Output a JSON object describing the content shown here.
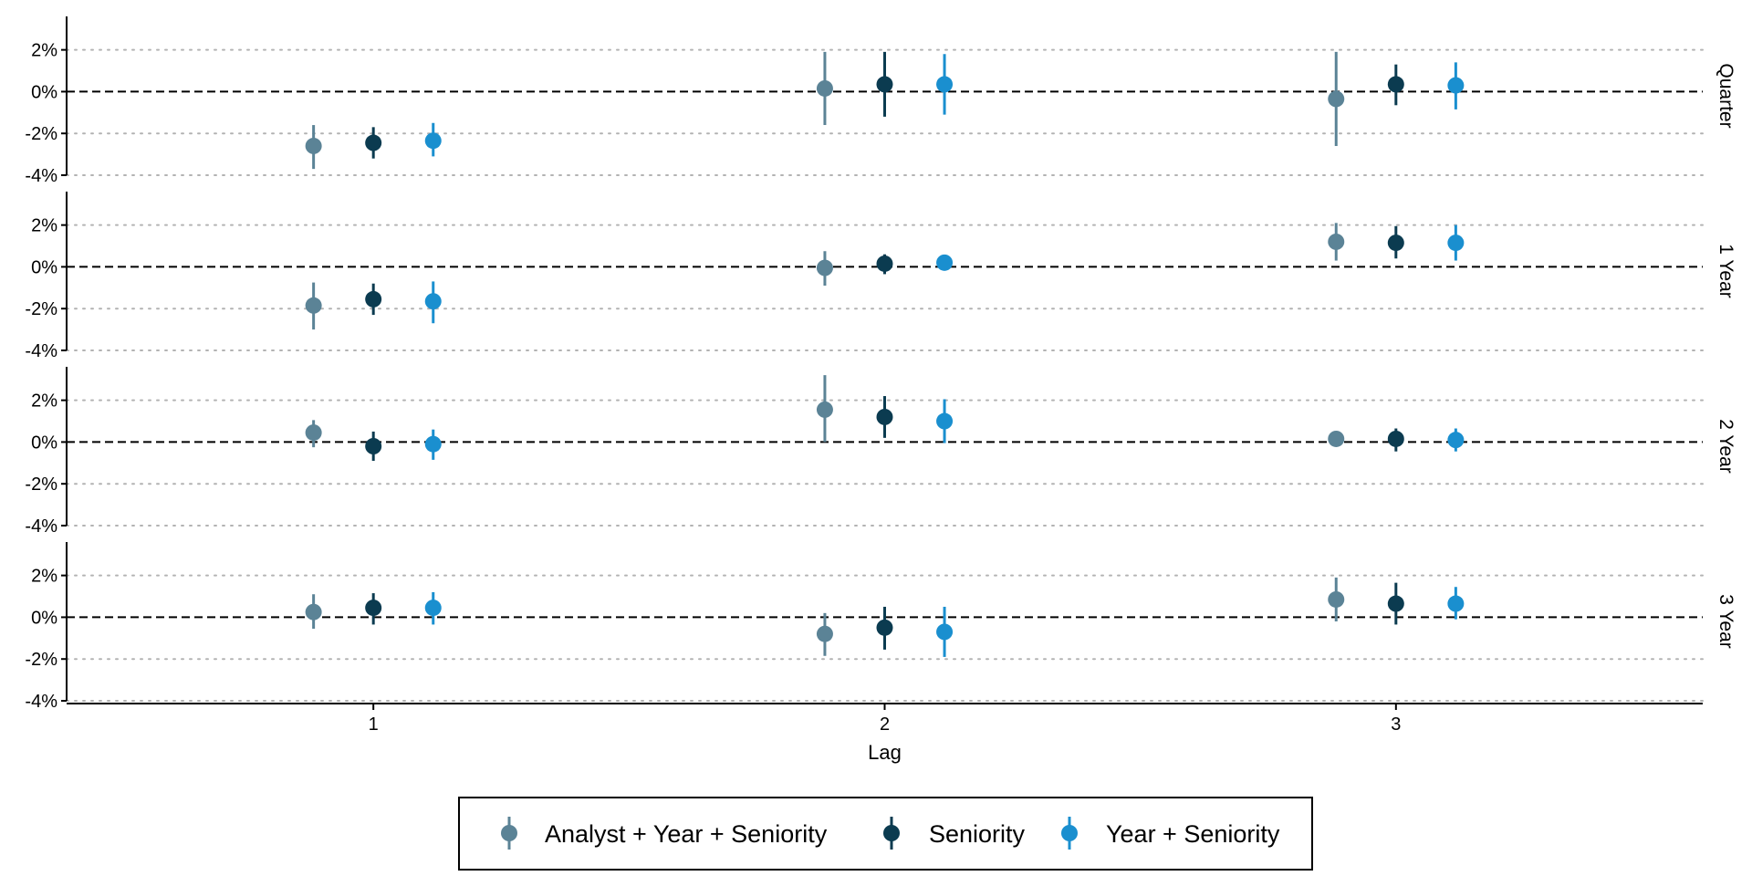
{
  "chart_data": {
    "type": "scatter",
    "subtype": "point-range (coefficient estimates with confidence intervals), faceted",
    "xlabel": "Lag",
    "x_ticks": [
      "1",
      "2",
      "3"
    ],
    "x_range": [
      0.4,
      3.6
    ],
    "y_ticks": [
      {
        "value": 2,
        "label": "2%"
      },
      {
        "value": 0,
        "label": "0%"
      },
      {
        "value": -2,
        "label": "-2%"
      },
      {
        "value": -4,
        "label": "-4%"
      }
    ],
    "y_range": [
      -4,
      3.6
    ],
    "reference_line": {
      "y": 0,
      "style": "dashed",
      "color": "#000000"
    },
    "grid": "horizontal dotted at 2% and -2%",
    "legend_position": "bottom",
    "series": [
      {
        "name": "Analyst + Year + Seniority",
        "color": "#5b8396",
        "offset": -0.117
      },
      {
        "name": "Seniority",
        "color": "#0b3b50",
        "offset": 0
      },
      {
        "name": "Year + Seniority",
        "color": "#1a8fcf",
        "offset": 0.117
      }
    ],
    "facets": [
      {
        "label": "Quarter",
        "points": [
          {
            "series": 0,
            "lag": 1,
            "est": -2.6,
            "lo": -3.7,
            "hi": -1.6
          },
          {
            "series": 1,
            "lag": 1,
            "est": -2.45,
            "lo": -3.2,
            "hi": -1.7
          },
          {
            "series": 2,
            "lag": 1,
            "est": -2.35,
            "lo": -3.1,
            "hi": -1.5
          },
          {
            "series": 0,
            "lag": 2,
            "est": 0.15,
            "lo": -1.6,
            "hi": 1.9
          },
          {
            "series": 1,
            "lag": 2,
            "est": 0.35,
            "lo": -1.2,
            "hi": 1.9
          },
          {
            "series": 2,
            "lag": 2,
            "est": 0.35,
            "lo": -1.1,
            "hi": 1.8
          },
          {
            "series": 0,
            "lag": 3,
            "est": -0.35,
            "lo": -2.6,
            "hi": 1.9
          },
          {
            "series": 1,
            "lag": 3,
            "est": 0.35,
            "lo": -0.65,
            "hi": 1.3
          },
          {
            "series": 2,
            "lag": 3,
            "est": 0.3,
            "lo": -0.85,
            "hi": 1.4
          }
        ]
      },
      {
        "label": "1 Year",
        "points": [
          {
            "series": 0,
            "lag": 1,
            "est": -1.85,
            "lo": -3.0,
            "hi": -0.75
          },
          {
            "series": 1,
            "lag": 1,
            "est": -1.55,
            "lo": -2.3,
            "hi": -0.8
          },
          {
            "series": 2,
            "lag": 1,
            "est": -1.65,
            "lo": -2.7,
            "hi": -0.7
          },
          {
            "series": 0,
            "lag": 2,
            "est": -0.05,
            "lo": -0.9,
            "hi": 0.75
          },
          {
            "series": 1,
            "lag": 2,
            "est": 0.15,
            "lo": -0.35,
            "hi": 0.6
          },
          {
            "series": 2,
            "lag": 2,
            "est": 0.2,
            "lo": -0.1,
            "hi": 0.5
          },
          {
            "series": 0,
            "lag": 3,
            "est": 1.2,
            "lo": 0.3,
            "hi": 2.1
          },
          {
            "series": 1,
            "lag": 3,
            "est": 1.15,
            "lo": 0.4,
            "hi": 1.95
          },
          {
            "series": 2,
            "lag": 3,
            "est": 1.15,
            "lo": 0.3,
            "hi": 2.0
          }
        ]
      },
      {
        "label": "2 Year",
        "points": [
          {
            "series": 0,
            "lag": 1,
            "est": 0.45,
            "lo": -0.25,
            "hi": 1.05
          },
          {
            "series": 1,
            "lag": 1,
            "est": -0.2,
            "lo": -0.9,
            "hi": 0.5
          },
          {
            "series": 2,
            "lag": 1,
            "est": -0.1,
            "lo": -0.85,
            "hi": 0.6
          },
          {
            "series": 0,
            "lag": 2,
            "est": 1.55,
            "lo": 0.0,
            "hi": 3.2
          },
          {
            "series": 1,
            "lag": 2,
            "est": 1.2,
            "lo": 0.2,
            "hi": 2.2
          },
          {
            "series": 2,
            "lag": 2,
            "est": 1.0,
            "lo": -0.05,
            "hi": 2.05
          },
          {
            "series": 0,
            "lag": 3,
            "est": 0.15,
            "lo": -0.1,
            "hi": 0.35
          },
          {
            "series": 1,
            "lag": 3,
            "est": 0.15,
            "lo": -0.45,
            "hi": 0.65
          },
          {
            "series": 2,
            "lag": 3,
            "est": 0.1,
            "lo": -0.45,
            "hi": 0.65
          }
        ]
      },
      {
        "label": "3 Year",
        "points": [
          {
            "series": 0,
            "lag": 1,
            "est": 0.25,
            "lo": -0.55,
            "hi": 1.1
          },
          {
            "series": 1,
            "lag": 1,
            "est": 0.45,
            "lo": -0.35,
            "hi": 1.15
          },
          {
            "series": 2,
            "lag": 1,
            "est": 0.45,
            "lo": -0.35,
            "hi": 1.2
          },
          {
            "series": 0,
            "lag": 2,
            "est": -0.8,
            "lo": -1.85,
            "hi": 0.2
          },
          {
            "series": 1,
            "lag": 2,
            "est": -0.5,
            "lo": -1.55,
            "hi": 0.5
          },
          {
            "series": 2,
            "lag": 2,
            "est": -0.7,
            "lo": -1.9,
            "hi": 0.5
          },
          {
            "series": 0,
            "lag": 3,
            "est": 0.85,
            "lo": -0.2,
            "hi": 1.9
          },
          {
            "series": 1,
            "lag": 3,
            "est": 0.65,
            "lo": -0.35,
            "hi": 1.65
          },
          {
            "series": 2,
            "lag": 3,
            "est": 0.65,
            "lo": -0.1,
            "hi": 1.45
          }
        ]
      }
    ]
  }
}
